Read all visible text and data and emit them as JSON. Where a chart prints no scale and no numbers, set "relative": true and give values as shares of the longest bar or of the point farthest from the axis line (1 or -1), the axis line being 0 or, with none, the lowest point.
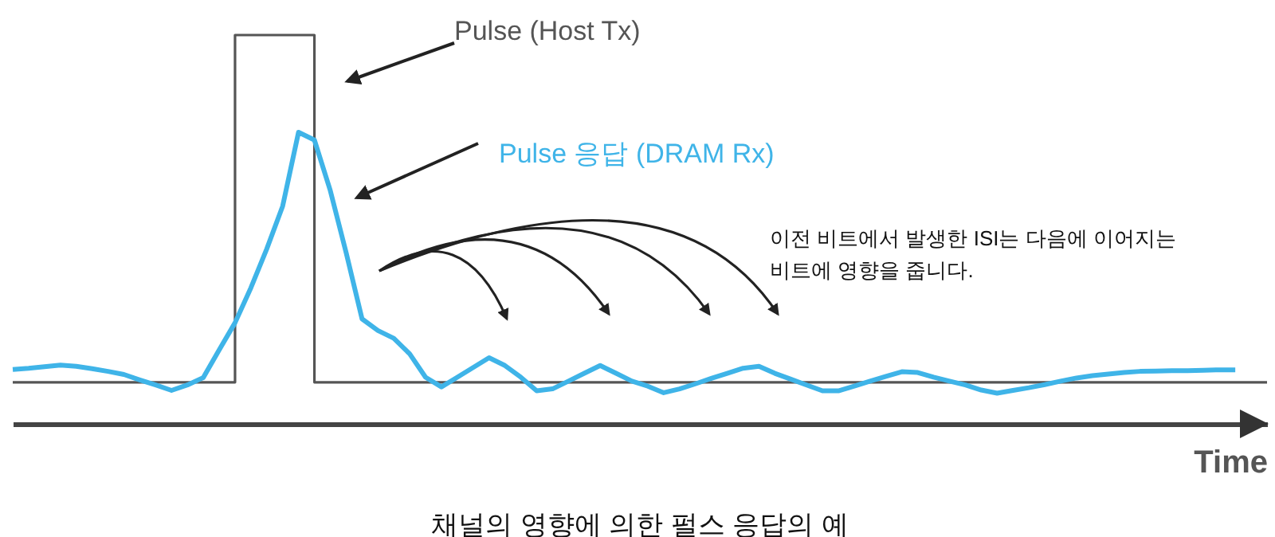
{
  "chart_data": {
    "type": "line",
    "title": "채널의 영향에 의한 펄스 응답의 예",
    "xlabel": "Time",
    "relative": true,
    "categories": [
      null,
      null,
      null,
      null,
      null,
      null,
      null,
      null,
      null,
      null,
      null,
      null,
      null,
      null,
      null,
      null,
      null,
      null,
      null,
      null,
      null,
      null,
      null,
      null,
      null,
      null,
      null,
      null,
      null,
      null,
      null,
      null,
      null,
      null,
      null,
      null,
      null,
      null,
      null,
      null,
      null,
      null,
      null,
      null,
      null,
      null,
      null,
      null,
      null,
      null,
      null,
      null,
      null,
      null,
      null,
      null,
      null,
      null,
      null,
      null,
      null,
      null,
      null,
      null,
      null,
      null,
      null,
      null,
      null,
      null,
      null,
      null,
      null,
      null,
      null,
      null,
      null,
      null,
      null,
      null
    ],
    "series": [
      {
        "name": "Pulse (Host Tx)",
        "type": "step",
        "color": "#555555",
        "values": [
          0.107,
          0.107,
          0.107,
          0.107,
          0.107,
          0.107,
          0.107,
          0.107,
          0.107,
          0.107,
          0.107,
          0.107,
          0.107,
          0.107,
          1,
          1,
          1,
          1,
          1,
          0.107,
          0.107,
          0.107,
          0.107,
          0.107,
          0.107,
          0.107,
          0.107,
          0.107,
          0.107,
          0.107,
          0.107,
          0.107,
          0.107,
          0.107,
          0.107,
          0.107,
          0.107,
          0.107,
          0.107,
          0.107,
          0.107,
          0.107,
          0.107,
          0.107,
          0.107,
          0.107,
          0.107,
          0.107,
          0.107,
          0.107,
          0.107,
          0.107,
          0.107,
          0.107,
          0.107,
          0.107,
          0.107,
          0.107,
          0.107,
          0.107,
          0.107,
          0.107,
          0.107,
          0.107,
          0.107,
          0.107,
          0.107,
          0.107,
          0.107,
          0.107,
          0.107,
          0.107,
          0.107,
          0.107,
          0.107,
          0.107,
          0.107,
          0.107,
          0.107,
          0.107
        ]
      },
      {
        "name": "Pulse 응답 (DRAM Rx)",
        "color": "#3fb4e8",
        "values": [
          0.14,
          0.143,
          0.147,
          0.151,
          0.148,
          0.142,
          0.135,
          0.127,
          0.113,
          0.1,
          0.086,
          0.1,
          0.119,
          0.19,
          0.26,
          0.35,
          0.45,
          0.56,
          0.75,
          0.73,
          0.6,
          0.44,
          0.27,
          0.24,
          0.22,
          0.18,
          0.12,
          0.095,
          0.12,
          0.145,
          0.17,
          0.15,
          0.12,
          0.085,
          0.09,
          0.11,
          0.13,
          0.15,
          0.13,
          0.11,
          0.097,
          0.08,
          0.09,
          0.103,
          0.117,
          0.13,
          0.143,
          0.148,
          0.13,
          0.115,
          0.1,
          0.085,
          0.085,
          0.097,
          0.11,
          0.122,
          0.134,
          0.132,
          0.12,
          0.11,
          0.1,
          0.087,
          0.079,
          0.086,
          0.093,
          0.101,
          0.11,
          0.118,
          0.124,
          0.128,
          0.132,
          0.135,
          0.136,
          0.137,
          0.137,
          0.138,
          0.139,
          0.139,
          null,
          null
        ]
      }
    ],
    "annotations": [
      "이전 비트에서 발생한 ISI는 다음에 이어지는\n비트에 영향을 줍니다."
    ]
  }
}
